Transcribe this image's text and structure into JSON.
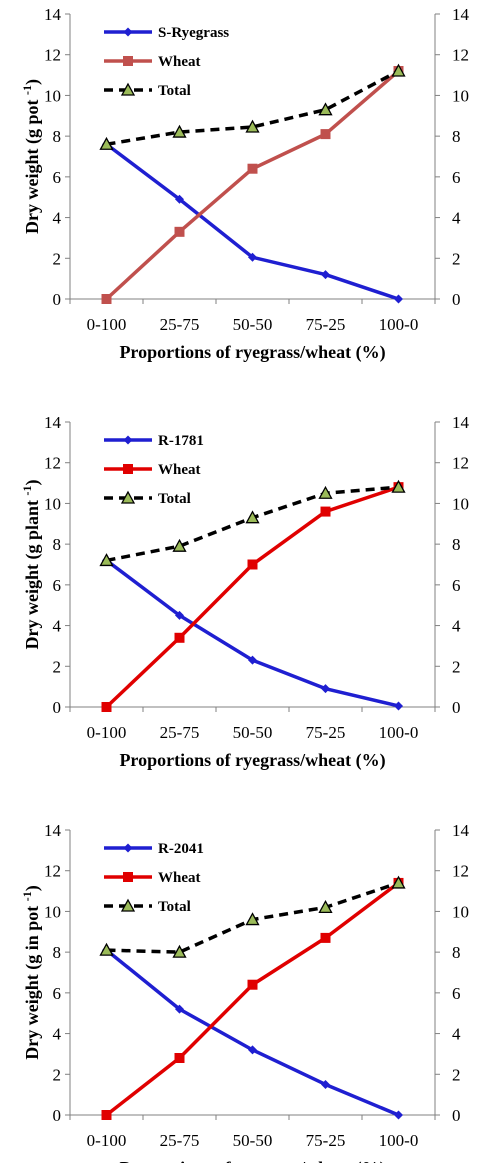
{
  "chart_data": [
    {
      "type": "line",
      "categories": [
        "0-100",
        "25-75",
        "50-50",
        "75-25",
        "100-0"
      ],
      "xlabel": "Proportions of ryegrass/wheat (%)",
      "ylabel": "Dry weight (g  pot",
      "ylabel_sup": "-1",
      "ylabel_close": ")",
      "ylim": [
        0,
        14
      ],
      "yticks": [
        0,
        2,
        4,
        6,
        8,
        10,
        12,
        14
      ],
      "secondary_y_axis": true,
      "grid": false,
      "legend_position": "top-left",
      "series": [
        {
          "name": "S-Ryegrass",
          "values": [
            7.6,
            4.9,
            2.05,
            1.2,
            0.0
          ],
          "color": "#1f1fd1",
          "marker": "diamond",
          "dashed": false
        },
        {
          "name": "Wheat",
          "values": [
            0.0,
            3.3,
            6.4,
            8.1,
            11.2
          ],
          "color": "#c0504d",
          "marker": "square",
          "dashed": false
        },
        {
          "name": "Total",
          "values": [
            7.6,
            8.2,
            8.45,
            9.3,
            11.2
          ],
          "color": "#000000",
          "marker": "triangle",
          "marker_fill": "#9bbb59",
          "dashed": true
        }
      ]
    },
    {
      "type": "line",
      "categories": [
        "0-100",
        "25-75",
        "50-50",
        "75-25",
        "100-0"
      ],
      "xlabel": "Proportions of ryegrass/wheat (%)",
      "ylabel": "Dry weight (g  plant",
      "ylabel_sup": "-1",
      "ylabel_close": ")",
      "ylim": [
        0,
        14
      ],
      "yticks": [
        0,
        2,
        4,
        6,
        8,
        10,
        12,
        14
      ],
      "secondary_y_axis": true,
      "grid": false,
      "legend_position": "top-left",
      "series": [
        {
          "name": "R-1781",
          "values": [
            7.2,
            4.5,
            2.3,
            0.9,
            0.05
          ],
          "color": "#1f1fd1",
          "marker": "diamond",
          "dashed": false
        },
        {
          "name": "Wheat",
          "values": [
            0.0,
            3.4,
            7.0,
            9.6,
            10.8
          ],
          "color": "#e00000",
          "marker": "square",
          "dashed": false
        },
        {
          "name": "Total",
          "values": [
            7.2,
            7.9,
            9.3,
            10.5,
            10.8
          ],
          "color": "#000000",
          "marker": "triangle",
          "marker_fill": "#9bbb59",
          "dashed": true
        }
      ]
    },
    {
      "type": "line",
      "categories": [
        "0-100",
        "25-75",
        "50-50",
        "75-25",
        "100-0"
      ],
      "xlabel": "Proportions of ryegrass/wheat (%)",
      "ylabel": "Dry weight (g in pot",
      "ylabel_sup": "-1",
      "ylabel_close": ")",
      "ylim": [
        0,
        14
      ],
      "yticks": [
        0,
        2,
        4,
        6,
        8,
        10,
        12,
        14
      ],
      "secondary_y_axis": true,
      "grid": false,
      "legend_position": "top-left",
      "series": [
        {
          "name": "R-2041",
          "values": [
            8.1,
            5.2,
            3.2,
            1.5,
            0.0
          ],
          "color": "#1f1fd1",
          "marker": "diamond",
          "dashed": false
        },
        {
          "name": "Wheat",
          "values": [
            0.0,
            2.8,
            6.4,
            8.7,
            11.4
          ],
          "color": "#e00000",
          "marker": "square",
          "dashed": false
        },
        {
          "name": "Total",
          "values": [
            8.1,
            8.0,
            9.6,
            10.2,
            11.4
          ],
          "color": "#000000",
          "marker": "triangle",
          "marker_fill": "#9bbb59",
          "dashed": true
        }
      ]
    }
  ]
}
